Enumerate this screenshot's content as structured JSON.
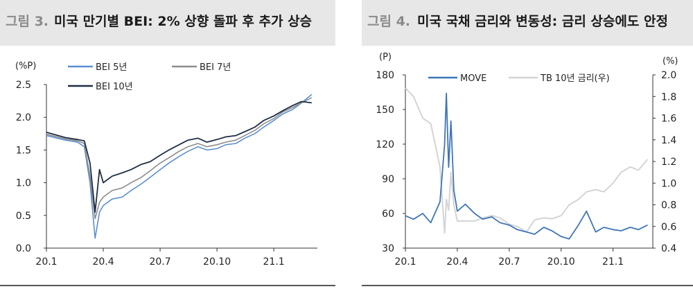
{
  "fig3": {
    "fig_label": "그림 3.",
    "title": "미국 만기별 BEI: 2% 상향 돌파 후 추가 상승"
  },
  "fig4": {
    "fig_label": "그림 4.",
    "title": "미국 국채 금리와 변동성: 금리 상승에도 안정"
  },
  "colors": {
    "bei5": "#5b8fd1",
    "bei7": "#8c8c8c",
    "bei10": "#1f2d44",
    "move": "#3f75b8",
    "tb10": "#d4d4d4"
  },
  "chart_data": [
    {
      "type": "line",
      "title": "미국 만기별 BEI: 2% 상향 돌파 후 추가 상승",
      "ylabel": "(%P)",
      "ylim": [
        0.0,
        2.5
      ],
      "yticks": [
        "0.0",
        "0.5",
        "1.0",
        "1.5",
        "2.0",
        "2.5"
      ],
      "xticks": [
        "20.1",
        "20.4",
        "20.7",
        "20.10",
        "21.1"
      ],
      "legend": "top-left",
      "series": [
        {
          "name": "BEI 5년",
          "x": [
            "20.1",
            "20.2",
            "20.2.20",
            "20.3.1",
            "20.3.10",
            "20.3.18",
            "20.3.25",
            "20.4",
            "20.4.15",
            "20.5",
            "20.5.15",
            "20.6",
            "20.6.15",
            "20.7",
            "20.7.15",
            "20.8",
            "20.8.15",
            "20.9",
            "20.9.15",
            "20.10",
            "20.10.15",
            "20.11",
            "20.11.15",
            "20.12",
            "20.12.15",
            "21.1",
            "21.1.15",
            "21.2",
            "21.2.15",
            "21.3"
          ],
          "values": [
            1.72,
            1.65,
            1.62,
            1.55,
            1.0,
            0.15,
            0.55,
            0.65,
            0.75,
            0.78,
            0.88,
            0.98,
            1.08,
            1.2,
            1.3,
            1.4,
            1.48,
            1.55,
            1.5,
            1.52,
            1.58,
            1.6,
            1.68,
            1.75,
            1.85,
            1.95,
            2.05,
            2.12,
            2.22,
            2.35
          ]
        },
        {
          "name": "BEI 7년",
          "x": [
            "20.1",
            "20.2",
            "20.2.20",
            "20.3.1",
            "20.3.10",
            "20.3.18",
            "20.3.25",
            "20.4",
            "20.4.15",
            "20.5",
            "20.5.15",
            "20.6",
            "20.6.15",
            "20.7",
            "20.7.15",
            "20.8",
            "20.8.15",
            "20.9",
            "20.9.15",
            "20.10",
            "20.10.15",
            "20.11",
            "20.11.15",
            "20.12",
            "20.12.15",
            "21.1",
            "21.1.15",
            "21.2",
            "21.2.15",
            "21.3"
          ],
          "values": [
            1.74,
            1.67,
            1.64,
            1.6,
            1.1,
            0.45,
            0.7,
            0.78,
            0.88,
            0.92,
            1.0,
            1.08,
            1.18,
            1.3,
            1.38,
            1.48,
            1.55,
            1.6,
            1.55,
            1.58,
            1.62,
            1.65,
            1.72,
            1.8,
            1.9,
            1.98,
            2.08,
            2.15,
            2.22,
            2.3
          ]
        },
        {
          "name": "BEI 10년",
          "x": [
            "20.1",
            "20.2",
            "20.2.20",
            "20.3.1",
            "20.3.10",
            "20.3.18",
            "20.3.25",
            "20.4",
            "20.4.15",
            "20.5",
            "20.5.15",
            "20.6",
            "20.6.15",
            "20.7",
            "20.7.15",
            "20.8",
            "20.8.15",
            "20.9",
            "20.9.15",
            "20.10",
            "20.10.15",
            "20.11",
            "20.11.15",
            "20.12",
            "20.12.15",
            "21.1",
            "21.1.15",
            "21.2",
            "21.2.15",
            "21.3"
          ],
          "values": [
            1.77,
            1.69,
            1.66,
            1.64,
            1.3,
            0.55,
            1.2,
            1.0,
            1.1,
            1.15,
            1.2,
            1.28,
            1.32,
            1.42,
            1.5,
            1.58,
            1.65,
            1.68,
            1.62,
            1.66,
            1.7,
            1.72,
            1.78,
            1.85,
            1.95,
            2.02,
            2.1,
            2.18,
            2.24,
            2.22
          ]
        }
      ]
    },
    {
      "type": "line",
      "title": "미국 국채 금리와 변동성: 금리 상승에도 안정",
      "ylabel_left": "(P)",
      "ylabel_right": "(%)",
      "ylim_left": [
        30,
        180
      ],
      "ylim_right": [
        0.4,
        2.0
      ],
      "yticks_left": [
        "30",
        "60",
        "90",
        "120",
        "150",
        "180"
      ],
      "yticks_right": [
        "0.4",
        "0.6",
        "0.8",
        "1.0",
        "1.2",
        "1.4",
        "1.6",
        "1.8",
        "2.0"
      ],
      "xticks": [
        "20.1",
        "20.4",
        "20.7",
        "20.10",
        "21.1"
      ],
      "legend": "top",
      "series": [
        {
          "name": "MOVE",
          "axis": "left",
          "x": [
            "20.1",
            "20.1.15",
            "20.2",
            "20.2.15",
            "20.3.1",
            "20.3.9",
            "20.3.12",
            "20.3.16",
            "20.3.20",
            "20.3.25",
            "20.4",
            "20.4.15",
            "20.5",
            "20.5.15",
            "20.6",
            "20.6.15",
            "20.7",
            "20.7.15",
            "20.8",
            "20.8.15",
            "20.9",
            "20.9.15",
            "20.10",
            "20.10.15",
            "20.11",
            "20.11.15",
            "20.12",
            "20.12.15",
            "21.1",
            "21.1.15",
            "21.2",
            "21.2.15",
            "21.3"
          ],
          "values": [
            58,
            55,
            60,
            52,
            70,
            120,
            164,
            100,
            140,
            80,
            62,
            68,
            60,
            55,
            57,
            52,
            50,
            46,
            44,
            42,
            48,
            45,
            40,
            38,
            50,
            62,
            44,
            48,
            46,
            45,
            48,
            46,
            50
          ]
        },
        {
          "name": "TB 10년 금리(우)",
          "axis": "right",
          "x": [
            "20.1",
            "20.1.15",
            "20.2",
            "20.2.15",
            "20.3.1",
            "20.3.9",
            "20.3.12",
            "20.3.16",
            "20.3.20",
            "20.3.25",
            "20.4",
            "20.4.15",
            "20.5",
            "20.5.15",
            "20.6",
            "20.6.15",
            "20.7",
            "20.7.15",
            "20.8",
            "20.8.15",
            "20.9",
            "20.9.15",
            "20.10",
            "20.10.15",
            "20.11",
            "20.11.15",
            "20.12",
            "20.12.15",
            "21.1",
            "21.1.15",
            "21.2",
            "21.2.15",
            "21.3"
          ],
          "values": [
            1.88,
            1.8,
            1.6,
            1.55,
            1.15,
            0.54,
            0.85,
            0.75,
            1.1,
            0.8,
            0.65,
            0.65,
            0.65,
            0.68,
            0.7,
            0.68,
            0.62,
            0.6,
            0.55,
            0.66,
            0.68,
            0.67,
            0.7,
            0.8,
            0.85,
            0.92,
            0.94,
            0.92,
            1.0,
            1.1,
            1.15,
            1.12,
            1.22
          ]
        }
      ]
    }
  ]
}
